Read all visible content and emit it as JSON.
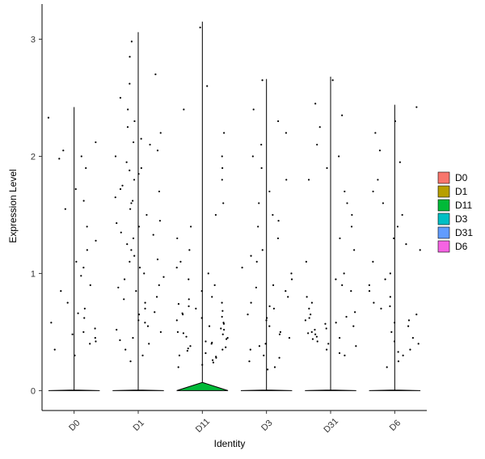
{
  "chart_data": {
    "type": "violin",
    "x_label": "Identity",
    "y_label": "Expression Level",
    "ylim": [
      -0.17,
      3.3
    ],
    "yticks": [
      0,
      1,
      2,
      3
    ],
    "categories": [
      "D0",
      "D1",
      "D11",
      "D3",
      "D31",
      "D6"
    ],
    "series": [
      {
        "name": "D0",
        "color": "#F8766D",
        "max": 2.42,
        "fill_top": 0.005,
        "points": [
          2.33,
          2.12,
          2.05,
          1.98,
          1.9,
          1.72,
          1.55,
          1.4,
          1.2,
          1.1,
          1.05,
          0.98,
          0.9,
          0.85,
          0.75,
          0.7,
          0.62,
          0.58,
          0.5,
          0.48,
          0.42,
          0.4,
          0.35,
          0.3,
          1.28,
          1.62,
          2.0,
          0.66,
          0.45,
          0.53
        ]
      },
      {
        "name": "D1",
        "color": "#B79F00",
        "max": 3.06,
        "fill_top": 0.005,
        "points": [
          2.98,
          2.85,
          2.7,
          2.62,
          2.5,
          2.4,
          2.3,
          2.25,
          2.2,
          2.15,
          2.1,
          2.05,
          2.0,
          1.95,
          1.9,
          1.85,
          1.8,
          1.75,
          1.7,
          1.65,
          1.6,
          1.55,
          1.5,
          1.45,
          1.4,
          1.35,
          1.3,
          1.25,
          1.2,
          1.15,
          1.1,
          1.05,
          1.0,
          0.95,
          0.9,
          0.85,
          0.8,
          0.75,
          0.7,
          0.65,
          0.6,
          0.55,
          0.5,
          0.45,
          0.4,
          0.35,
          0.3,
          0.25,
          1.88,
          1.62,
          1.33,
          1.12,
          0.88,
          0.67,
          0.52,
          2.12,
          1.72,
          1.43,
          0.97,
          0.78,
          0.58,
          0.43
        ]
      },
      {
        "name": "D11",
        "color": "#00BA38",
        "max": 3.15,
        "fill_top": 0.07,
        "points": [
          3.1,
          2.6,
          2.4,
          2.2,
          2.0,
          1.9,
          1.8,
          1.6,
          1.5,
          1.4,
          1.3,
          1.2,
          1.1,
          1.05,
          1.0,
          0.95,
          0.9,
          0.85,
          0.8,
          0.78,
          0.75,
          0.72,
          0.7,
          0.68,
          0.65,
          0.62,
          0.6,
          0.58,
          0.55,
          0.52,
          0.5,
          0.48,
          0.46,
          0.44,
          0.42,
          0.4,
          0.38,
          0.36,
          0.34,
          0.32,
          0.3,
          0.28,
          0.26,
          0.24,
          0.22,
          0.2,
          0.66,
          0.57,
          0.49,
          0.41,
          0.35,
          0.74,
          0.63,
          0.53,
          0.45,
          0.37,
          0.29
        ]
      },
      {
        "name": "D3",
        "color": "#00BFC4",
        "max": 2.66,
        "fill_top": 0.005,
        "points": [
          2.65,
          2.4,
          2.3,
          2.2,
          2.1,
          2.0,
          1.9,
          1.8,
          1.7,
          1.6,
          1.5,
          1.45,
          1.4,
          1.3,
          1.2,
          1.15,
          1.1,
          1.0,
          0.95,
          0.9,
          0.85,
          0.8,
          0.75,
          0.7,
          0.65,
          0.6,
          0.55,
          0.5,
          0.45,
          0.4,
          0.35,
          0.3,
          0.25,
          0.2,
          0.18,
          0.72,
          0.62,
          0.48,
          0.38,
          0.28,
          1.05,
          0.88
        ]
      },
      {
        "name": "D31",
        "color": "#619CFF",
        "max": 2.68,
        "fill_top": 0.005,
        "points": [
          2.65,
          2.45,
          2.35,
          2.25,
          2.1,
          2.0,
          1.9,
          1.8,
          1.7,
          1.6,
          1.5,
          1.4,
          1.3,
          1.2,
          1.1,
          1.0,
          0.95,
          0.9,
          0.85,
          0.8,
          0.75,
          0.7,
          0.65,
          0.62,
          0.6,
          0.58,
          0.55,
          0.52,
          0.5,
          0.48,
          0.45,
          0.42,
          0.4,
          0.38,
          0.35,
          0.32,
          0.3,
          0.57,
          0.53,
          0.49,
          0.46,
          0.63,
          0.67,
          0.44
        ]
      },
      {
        "name": "D6",
        "color": "#F564E3",
        "max": 2.44,
        "fill_top": 0.005,
        "points": [
          2.42,
          2.3,
          2.2,
          2.05,
          1.95,
          1.8,
          1.7,
          1.6,
          1.5,
          1.4,
          1.3,
          1.2,
          1.1,
          1.0,
          0.95,
          0.9,
          0.85,
          0.8,
          0.75,
          0.7,
          0.65,
          0.6,
          0.55,
          0.5,
          0.45,
          0.4,
          0.35,
          0.3,
          0.25,
          0.2,
          0.72,
          0.58,
          0.42,
          0.33,
          1.25
        ]
      }
    ]
  }
}
